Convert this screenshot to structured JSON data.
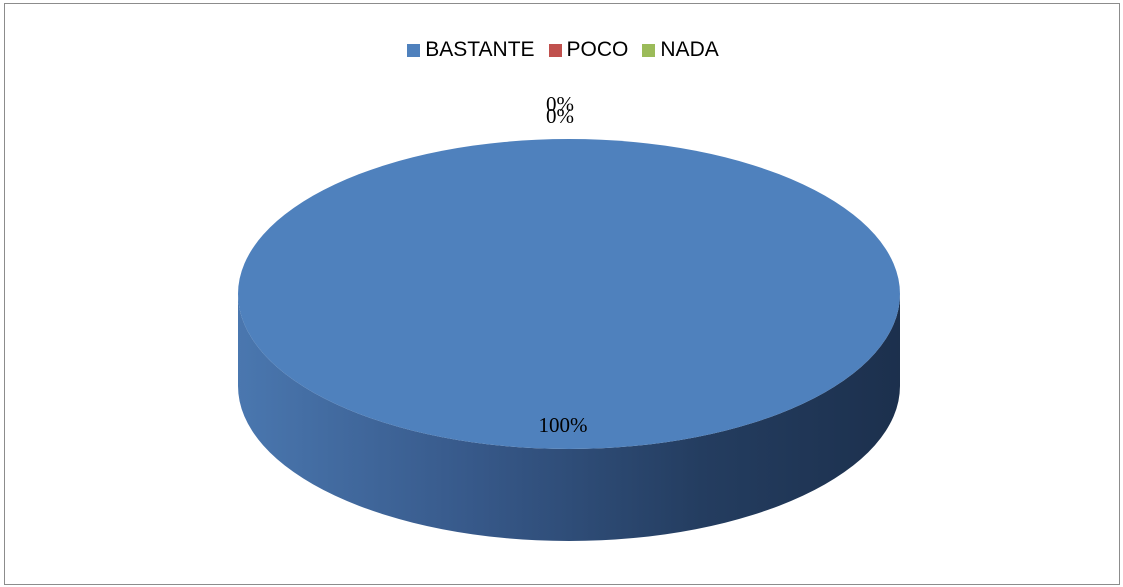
{
  "chart_data": {
    "type": "pie",
    "title": "",
    "categories": [
      "BASTANTE",
      "POCO",
      "NADA"
    ],
    "values": [
      100,
      0,
      0
    ],
    "labels": [
      "100%",
      "0%",
      "0%"
    ],
    "colors": [
      "#4f81bd",
      "#c0504d",
      "#9bbb59"
    ],
    "legend_position": "top",
    "style": "3d"
  }
}
